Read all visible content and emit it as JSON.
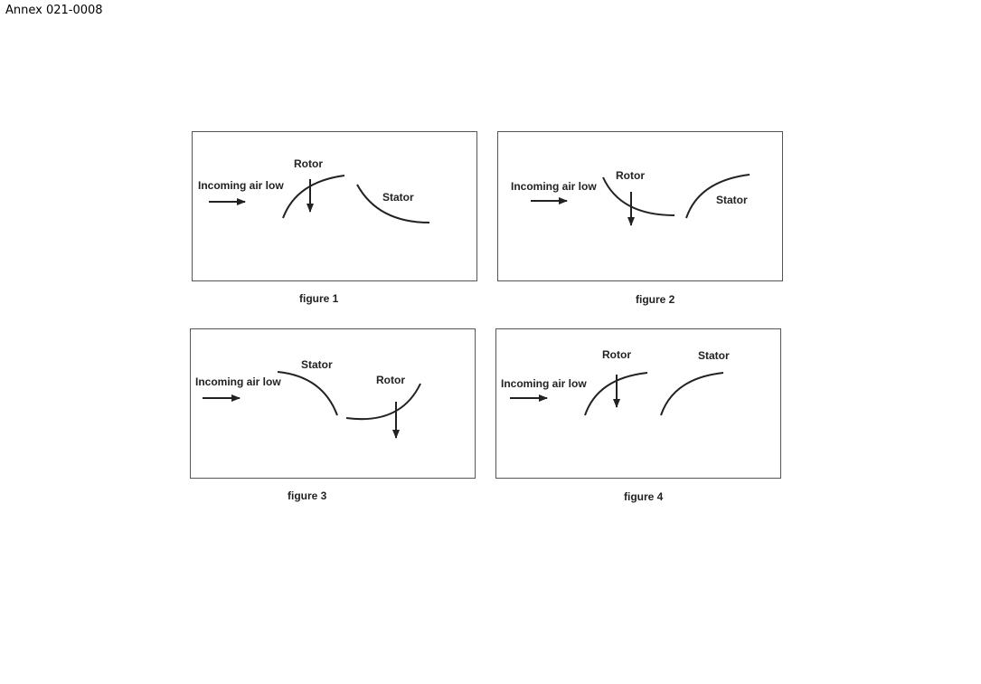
{
  "header": {
    "annex_id": "Annex 021-0008"
  },
  "figures": [
    {
      "caption": "figure 1",
      "inflow_label": "Incoming air low",
      "rotor_label": "Rotor",
      "stator_label": "Stator"
    },
    {
      "caption": "figure 2",
      "inflow_label": "Incoming air low",
      "rotor_label": "Rotor",
      "stator_label": "Stator"
    },
    {
      "caption": "figure 3",
      "inflow_label": "Incoming air low",
      "rotor_label": "Rotor",
      "stator_label": "Stator"
    },
    {
      "caption": "figure 4",
      "inflow_label": "Incoming air low",
      "rotor_label": "Rotor",
      "stator_label": "Stator"
    }
  ]
}
